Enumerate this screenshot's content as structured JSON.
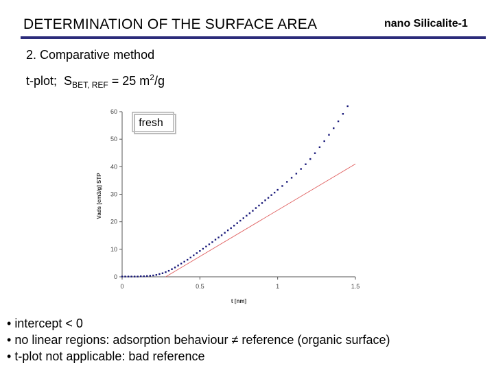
{
  "header": {
    "title": "DETERMINATION OF THE SURFACE AREA",
    "subtitle": "nano Silicalite-1"
  },
  "section_title": "2. Comparative method",
  "tplot_line": {
    "prefix": "t-plot;",
    "s": "S",
    "sub": "BET, REF",
    "eq": " = 25 m",
    "sup": "2",
    "unit": "/g"
  },
  "bullets": [
    "intercept < 0",
    "no linear regions: adsorption behaviour ≠ reference (organic surface)",
    "t-plot not applicable: bad reference"
  ],
  "colors": {
    "accent": "#2b2b7a",
    "points": "#1a1a7a",
    "fit_line": "#e06060"
  },
  "chart_data": {
    "type": "scatter",
    "annotation": "fresh",
    "xlabel": "t [nm]",
    "ylabel": "Vads [cm3/g] STP",
    "xlim": [
      0,
      1.5
    ],
    "ylim": [
      0,
      60
    ],
    "xticks": [
      "0",
      "0.5",
      "1",
      "1.5"
    ],
    "yticks": [
      "0",
      "10",
      "20",
      "30",
      "40",
      "50",
      "60"
    ],
    "grid": false,
    "series": [
      {
        "kind": "points",
        "x": [
          0.0,
          0.02,
          0.04,
          0.06,
          0.08,
          0.1,
          0.12,
          0.14,
          0.16,
          0.18,
          0.2,
          0.22,
          0.24,
          0.26,
          0.28,
          0.3,
          0.32,
          0.34,
          0.36,
          0.38,
          0.4,
          0.42,
          0.44,
          0.46,
          0.48,
          0.5,
          0.52,
          0.54,
          0.56,
          0.58,
          0.6,
          0.62,
          0.64,
          0.66,
          0.68,
          0.7,
          0.72,
          0.74,
          0.76,
          0.78,
          0.8,
          0.82,
          0.84,
          0.86,
          0.88,
          0.9,
          0.92,
          0.94,
          0.96,
          0.98,
          1.0,
          1.03,
          1.06,
          1.09,
          1.12,
          1.15,
          1.18,
          1.21,
          1.24,
          1.27,
          1.3,
          1.33,
          1.36,
          1.39,
          1.42,
          1.45,
          1.48
        ],
        "y": [
          0.1,
          0.1,
          0.1,
          0.1,
          0.1,
          0.1,
          0.2,
          0.2,
          0.3,
          0.4,
          0.5,
          0.7,
          1.0,
          1.3,
          1.7,
          2.2,
          2.8,
          3.4,
          4.1,
          4.8,
          5.5,
          6.2,
          7.0,
          7.8,
          8.6,
          9.4,
          10.2,
          11.0,
          11.8,
          12.6,
          13.5,
          14.3,
          15.1,
          16.0,
          16.9,
          17.7,
          18.6,
          19.5,
          20.4,
          21.3,
          22.2,
          23.1,
          24.0,
          25.0,
          25.9,
          26.8,
          27.8,
          28.7,
          29.7,
          30.6,
          31.6,
          33.0,
          34.5,
          36.0,
          37.5,
          39.2,
          40.9,
          42.8,
          44.9,
          47.1,
          49.3,
          51.6,
          54.0,
          56.5,
          59.2,
          62.0,
          65.0
        ]
      },
      {
        "kind": "line",
        "x": [
          0.28,
          1.5
        ],
        "y": [
          0.0,
          41.0
        ]
      }
    ]
  }
}
